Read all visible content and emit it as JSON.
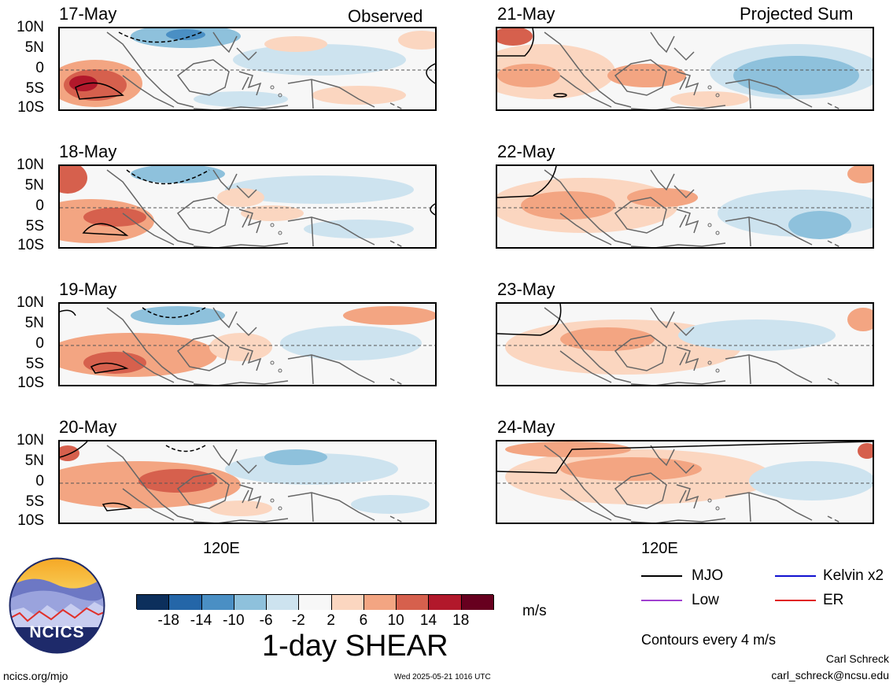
{
  "left_column": {
    "tag": "Observed",
    "panels": [
      {
        "date": "17-May"
      },
      {
        "date": "18-May"
      },
      {
        "date": "19-May"
      },
      {
        "date": "20-May"
      }
    ]
  },
  "right_column": {
    "tag": "Projected Sum",
    "panels": [
      {
        "date": "21-May"
      },
      {
        "date": "22-May"
      },
      {
        "date": "23-May"
      },
      {
        "date": "24-May"
      }
    ]
  },
  "lat_labels": [
    "10N",
    "5N",
    "0",
    "5S",
    "10S"
  ],
  "lon_label": "120E",
  "colorbar": {
    "title": "1-day SHEAR",
    "units": "m/s",
    "ticks": [
      "-18",
      "-14",
      "-10",
      "-6",
      "-2",
      "2",
      "6",
      "10",
      "14",
      "18"
    ],
    "colors": [
      "#0c2f5c",
      "#2466a8",
      "#4a8fc4",
      "#8ec1dc",
      "#cde3ef",
      "#f7f7f7",
      "#fbd6c0",
      "#f3a582",
      "#d6604d",
      "#b2182b",
      "#67001f"
    ]
  },
  "legend": {
    "items": [
      {
        "label": "MJO",
        "color": "#000000"
      },
      {
        "label": "Kelvin x2",
        "color": "#1010d0"
      },
      {
        "label": "Low",
        "color": "#a040d0"
      },
      {
        "label": "ER",
        "color": "#e02020"
      }
    ],
    "contour_note": "Contours every 4 m/s"
  },
  "credits": {
    "author": "Carl Schreck",
    "email": "carl_schreck@ncsu.edu",
    "url": "ncics.org/mjo",
    "timestamp": "Wed 2025-05-21 1016 UTC",
    "logo_text": "NCICS"
  }
}
